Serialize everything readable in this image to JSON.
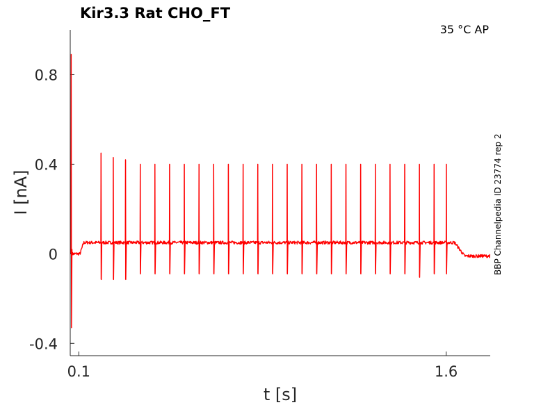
{
  "chart_data": {
    "type": "line",
    "title": "Kir3.3  Rat  CHO_FT",
    "annotation": "35 °C  AP",
    "side_label": "BBP Channelpedia ID 23774 rep 2",
    "xlabel": "t [s]",
    "ylabel": "I [nA]",
    "xlim": [
      0.065,
      1.78
    ],
    "ylim": [
      -0.455,
      1.0
    ],
    "x_ticks": [
      0.1,
      1.6
    ],
    "x_tick_labels": [
      "0.1",
      "1.6"
    ],
    "y_ticks": [
      -0.4,
      0,
      0.4,
      0.8
    ],
    "y_tick_labels": [
      "-0.4",
      "0",
      "0.4",
      "0.8"
    ],
    "grid": false,
    "series": [
      {
        "color": "#ff0000",
        "baseline": {
          "pre_level": 0.0,
          "plateau_level": 0.05,
          "post_level": -0.01,
          "step_on": 0.105,
          "step_off": 1.635,
          "end": 1.78
        },
        "capacitive_transient": {
          "x": 0.068,
          "max": 0.89,
          "min": -0.33
        },
        "spikes": [
          {
            "x": 0.19,
            "peak": 0.45,
            "trough": -0.115
          },
          {
            "x": 0.24,
            "peak": 0.43,
            "trough": -0.115
          },
          {
            "x": 0.29,
            "peak": 0.42,
            "trough": -0.115
          },
          {
            "x": 0.35,
            "peak": 0.4,
            "trough": -0.09
          },
          {
            "x": 0.41,
            "peak": 0.4,
            "trough": -0.09
          },
          {
            "x": 0.47,
            "peak": 0.4,
            "trough": -0.09
          },
          {
            "x": 0.53,
            "peak": 0.4,
            "trough": -0.09
          },
          {
            "x": 0.59,
            "peak": 0.4,
            "trough": -0.09
          },
          {
            "x": 0.65,
            "peak": 0.4,
            "trough": -0.09
          },
          {
            "x": 0.71,
            "peak": 0.4,
            "trough": -0.09
          },
          {
            "x": 0.77,
            "peak": 0.4,
            "trough": -0.09
          },
          {
            "x": 0.83,
            "peak": 0.4,
            "trough": -0.09
          },
          {
            "x": 0.89,
            "peak": 0.4,
            "trough": -0.09
          },
          {
            "x": 0.95,
            "peak": 0.4,
            "trough": -0.09
          },
          {
            "x": 1.01,
            "peak": 0.4,
            "trough": -0.09
          },
          {
            "x": 1.07,
            "peak": 0.4,
            "trough": -0.09
          },
          {
            "x": 1.13,
            "peak": 0.4,
            "trough": -0.09
          },
          {
            "x": 1.19,
            "peak": 0.4,
            "trough": -0.09
          },
          {
            "x": 1.25,
            "peak": 0.4,
            "trough": -0.09
          },
          {
            "x": 1.31,
            "peak": 0.4,
            "trough": -0.09
          },
          {
            "x": 1.37,
            "peak": 0.4,
            "trough": -0.09
          },
          {
            "x": 1.43,
            "peak": 0.4,
            "trough": -0.09
          },
          {
            "x": 1.49,
            "peak": 0.4,
            "trough": -0.105
          },
          {
            "x": 1.55,
            "peak": 0.4,
            "trough": -0.09
          },
          {
            "x": 1.6,
            "peak": 0.4,
            "trough": -0.09
          }
        ]
      }
    ]
  }
}
